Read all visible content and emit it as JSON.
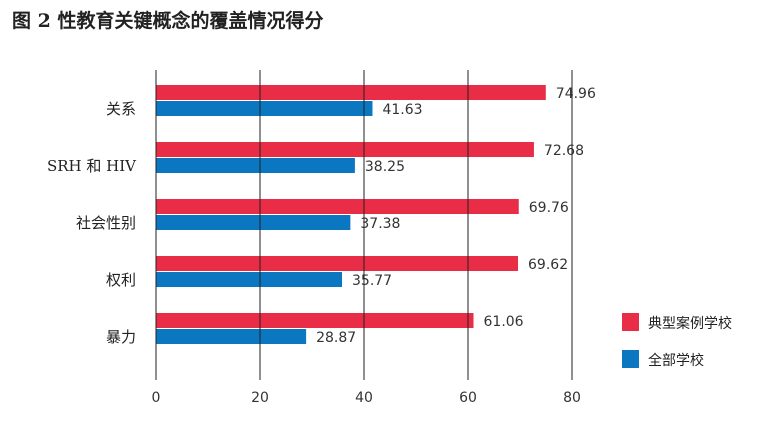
{
  "chart_data": {
    "type": "bar",
    "orientation": "horizontal",
    "title": "图 2 性教育关键概念的覆盖情况得分",
    "categories": [
      "关系",
      "SRH 和 HIV",
      "社会性别",
      "权利",
      "暴力"
    ],
    "series": [
      {
        "name": "典型案例学校",
        "color": "#e92d47",
        "values": [
          74.96,
          72.68,
          69.76,
          69.62,
          61.06
        ]
      },
      {
        "name": "全部学校",
        "color": "#0a77c0",
        "values": [
          41.63,
          38.25,
          37.38,
          35.77,
          28.87
        ]
      }
    ],
    "xlim": [
      0,
      80
    ],
    "xticks": [
      0,
      20,
      40,
      60,
      80
    ],
    "xlabel": "",
    "ylabel": "",
    "grid": "vertical",
    "legend": "right"
  }
}
